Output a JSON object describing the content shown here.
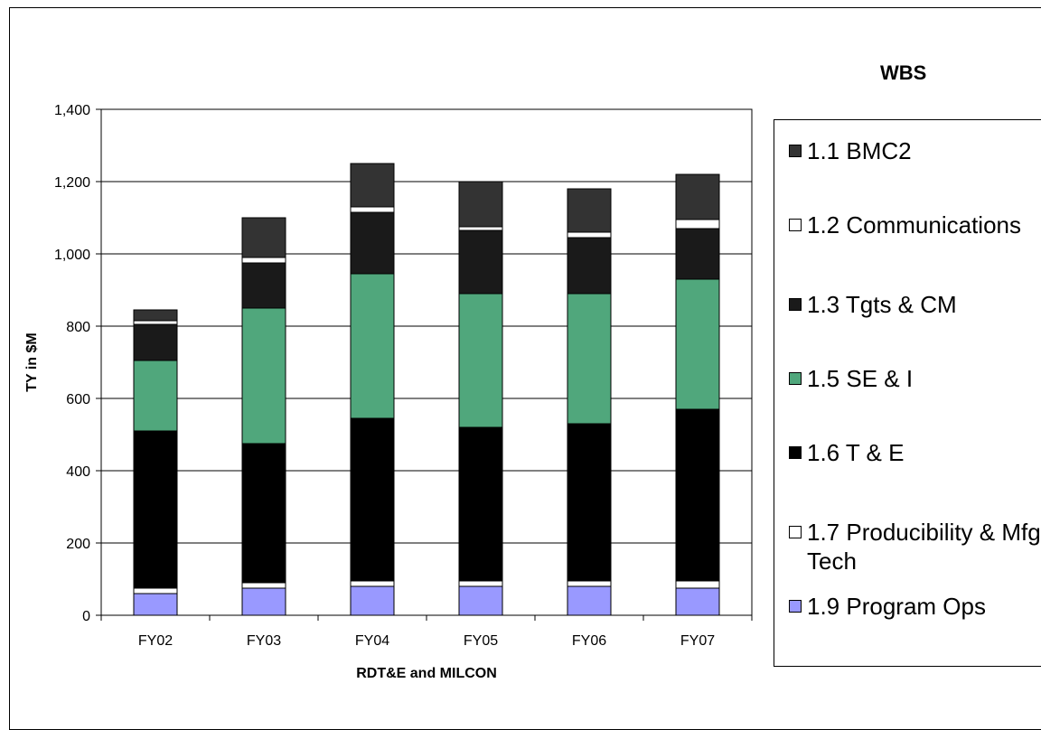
{
  "chart_data": {
    "type": "bar",
    "stacked": true,
    "title": "",
    "xlabel": "RDT&E and MILCON",
    "ylabel": "TY in $M",
    "ylim": [
      0,
      1400
    ],
    "yticks": [
      0,
      200,
      400,
      600,
      800,
      1000,
      1200,
      1400
    ],
    "ytick_labels": [
      "0",
      "200",
      "400",
      "600",
      "800",
      "1,000",
      "1,200",
      "1,400"
    ],
    "grid": "horizontal",
    "categories": [
      "FY02",
      "FY03",
      "FY04",
      "FY05",
      "FY06",
      "FY07"
    ],
    "legend": {
      "title": "WBS",
      "placement": "right"
    },
    "series": [
      {
        "name": "1.9 Program Ops",
        "color": "#9999FF",
        "values": [
          60,
          75,
          80,
          80,
          80,
          75
        ]
      },
      {
        "name": "1.7 Producibility & Mfg Tech",
        "color": "#FFFFFF",
        "values": [
          15,
          15,
          15,
          15,
          15,
          20
        ]
      },
      {
        "name": "1.6 T & E",
        "color": "#000000",
        "values": [
          435,
          385,
          450,
          425,
          435,
          475
        ]
      },
      {
        "name": "1.5 SE & I",
        "color": "#50A77C",
        "values": [
          195,
          375,
          400,
          370,
          360,
          360
        ]
      },
      {
        "name": "1.3 Tgts & CM",
        "color": "#1A1A1A",
        "values": [
          100,
          125,
          170,
          175,
          155,
          140
        ]
      },
      {
        "name": "1.2 Communications",
        "color": "#FFFFFF",
        "values": [
          10,
          15,
          15,
          10,
          15,
          25
        ]
      },
      {
        "name": "1.1 BMC2",
        "color": "#333333",
        "values": [
          30,
          110,
          120,
          125,
          120,
          125
        ]
      }
    ],
    "legend_order": [
      "1.1 BMC2",
      "1.2 Communications",
      "1.3 Tgts & CM",
      "1.5 SE & I",
      "1.6 T & E",
      "1.7 Producibility & Mfg Tech",
      "1.9 Program Ops"
    ]
  }
}
